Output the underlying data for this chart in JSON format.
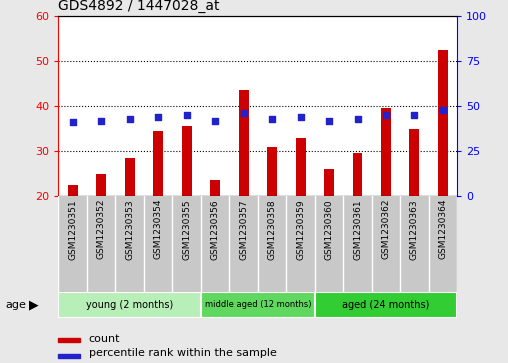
{
  "title": "GDS4892 / 1447028_at",
  "categories": [
    "GSM1230351",
    "GSM1230352",
    "GSM1230353",
    "GSM1230354",
    "GSM1230355",
    "GSM1230356",
    "GSM1230357",
    "GSM1230358",
    "GSM1230359",
    "GSM1230360",
    "GSM1230361",
    "GSM1230362",
    "GSM1230363",
    "GSM1230364"
  ],
  "bar_values": [
    22.5,
    25.0,
    28.5,
    34.5,
    35.5,
    23.5,
    43.5,
    31.0,
    33.0,
    26.0,
    29.5,
    39.5,
    35.0,
    52.5
  ],
  "percentile_values": [
    41,
    42,
    43,
    44,
    45,
    42,
    46,
    43,
    44,
    42,
    43,
    45,
    45,
    48
  ],
  "bar_color": "#cc0000",
  "percentile_color": "#2222cc",
  "ylim_left": [
    20,
    60
  ],
  "ylim_right": [
    0,
    100
  ],
  "yticks_left": [
    20,
    30,
    40,
    50,
    60
  ],
  "yticks_right": [
    0,
    25,
    50,
    75,
    100
  ],
  "groups": [
    {
      "label": "young (2 months)",
      "start": 0,
      "end": 5,
      "color": "#b8eeb8"
    },
    {
      "label": "middle aged (12 months)",
      "start": 5,
      "end": 9,
      "color": "#60d860"
    },
    {
      "label": "aged (24 months)",
      "start": 9,
      "end": 14,
      "color": "#32cd32"
    }
  ],
  "legend_count_label": "count",
  "legend_percentile_label": "percentile rank within the sample",
  "age_label": "age",
  "fig_bg": "#e8e8e8",
  "plot_bg": "#ffffff",
  "label_box_bg": "#c8c8c8"
}
